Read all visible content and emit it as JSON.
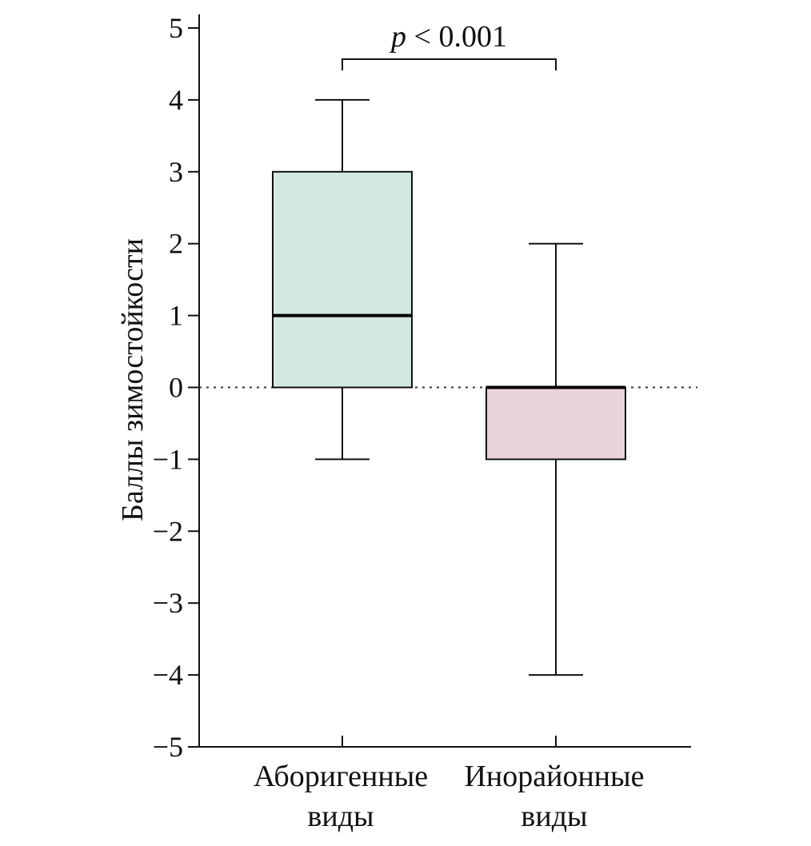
{
  "chart_data": {
    "type": "box",
    "title": "",
    "xlabel": "",
    "ylabel": "Баллы зимостойкости",
    "ylim": [
      -5,
      5
    ],
    "yticks": [
      5,
      4,
      3,
      2,
      1,
      0,
      -1,
      -2,
      -3,
      -4,
      -5
    ],
    "ytick_labels": [
      "5",
      "4",
      "3",
      "2",
      "1",
      "0",
      "−1",
      "−2",
      "−3",
      "−4",
      "−5"
    ],
    "reference_line": {
      "y": 0,
      "style": "dotted"
    },
    "categories": [
      {
        "label_lines": [
          "Аборигенные",
          "виды"
        ]
      },
      {
        "label_lines": [
          "Инорайонные",
          "виды"
        ]
      }
    ],
    "boxes": [
      {
        "whisker_low": -1,
        "q1": 0,
        "median": 1,
        "q3": 3,
        "whisker_high": 4,
        "fill": "#d3e9e0"
      },
      {
        "whisker_low": -4,
        "q1": -1,
        "median": 0,
        "q3": 0,
        "whisker_high": 2,
        "fill": "#ead3db"
      }
    ],
    "significance": {
      "from": 0,
      "to": 1,
      "y": 4.55,
      "label_italic": "p",
      "label_rest": " < 0.001"
    },
    "grid": false,
    "legend": "none"
  }
}
